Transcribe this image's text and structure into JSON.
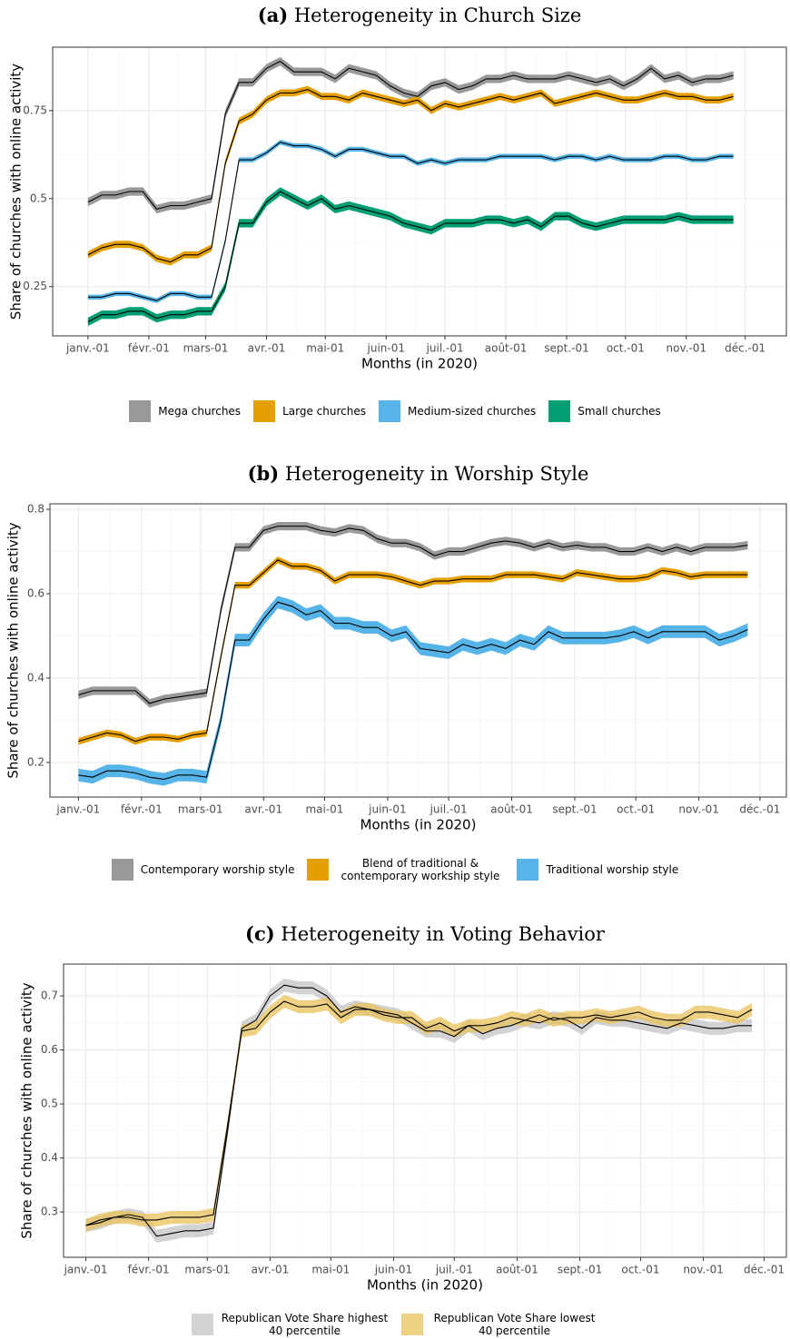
{
  "chart_data": [
    {
      "type": "line",
      "panel": "(a)",
      "title": "Heterogeneity in Church Size",
      "xlabel": "Months (in 2020)",
      "ylabel": "Share of churches with online activity",
      "line_color": "#000000",
      "band_opacity": 1,
      "grid": true,
      "x": [
        1,
        8,
        15,
        22,
        29,
        36,
        43,
        50,
        57,
        64,
        71,
        78,
        85,
        92,
        99,
        106,
        113,
        120,
        127,
        134,
        141,
        148,
        155,
        162,
        169,
        176,
        183,
        190,
        197,
        204,
        211,
        218,
        225,
        232,
        239,
        246,
        253,
        260,
        267,
        274,
        281,
        288,
        295,
        302,
        309,
        316,
        323,
        330
      ],
      "xlim": [
        -17,
        357
      ],
      "ylim": [
        0.11,
        0.93
      ],
      "xticks": [
        {
          "value": 1,
          "label": "janv.-01"
        },
        {
          "value": 32,
          "label": "févr.-01"
        },
        {
          "value": 61,
          "label": "mars-01"
        },
        {
          "value": 92,
          "label": "avr.-01"
        },
        {
          "value": 122,
          "label": "mai-01"
        },
        {
          "value": 153,
          "label": "juin-01"
        },
        {
          "value": 183,
          "label": "juil.-01"
        },
        {
          "value": 214,
          "label": "août-01"
        },
        {
          "value": 245,
          "label": "sept.-01"
        },
        {
          "value": 275,
          "label": "oct.-01"
        },
        {
          "value": 306,
          "label": "nov.-01"
        },
        {
          "value": 336,
          "label": "déc.-01"
        }
      ],
      "yticks": [
        0.25,
        0.5,
        0.75
      ],
      "series": [
        {
          "name": "Mega churches",
          "color": "#999999",
          "ci": 0.012,
          "values": [
            0.49,
            0.51,
            0.51,
            0.52,
            0.52,
            0.47,
            0.48,
            0.48,
            0.49,
            0.5,
            0.74,
            0.83,
            0.83,
            0.87,
            0.89,
            0.86,
            0.86,
            0.86,
            0.84,
            0.87,
            0.86,
            0.85,
            0.82,
            0.8,
            0.79,
            0.82,
            0.83,
            0.81,
            0.82,
            0.84,
            0.84,
            0.85,
            0.84,
            0.84,
            0.84,
            0.85,
            0.84,
            0.83,
            0.84,
            0.82,
            0.84,
            0.87,
            0.84,
            0.85,
            0.83,
            0.84,
            0.84,
            0.85
          ]
        },
        {
          "name": "Large churches",
          "color": "#E69F00",
          "ci": 0.01,
          "values": [
            0.34,
            0.36,
            0.37,
            0.37,
            0.36,
            0.33,
            0.32,
            0.34,
            0.34,
            0.36,
            0.6,
            0.72,
            0.74,
            0.78,
            0.8,
            0.8,
            0.81,
            0.79,
            0.79,
            0.78,
            0.8,
            0.79,
            0.78,
            0.77,
            0.78,
            0.75,
            0.77,
            0.76,
            0.77,
            0.78,
            0.79,
            0.78,
            0.79,
            0.8,
            0.77,
            0.78,
            0.79,
            0.8,
            0.79,
            0.78,
            0.78,
            0.79,
            0.8,
            0.79,
            0.79,
            0.78,
            0.78,
            0.79
          ]
        },
        {
          "name": "Medium-sized churches",
          "color": "#56B4E9",
          "ci": 0.007,
          "values": [
            0.22,
            0.22,
            0.23,
            0.23,
            0.22,
            0.21,
            0.23,
            0.23,
            0.22,
            0.22,
            0.38,
            0.61,
            0.61,
            0.63,
            0.66,
            0.65,
            0.65,
            0.64,
            0.62,
            0.64,
            0.64,
            0.63,
            0.62,
            0.62,
            0.6,
            0.61,
            0.6,
            0.61,
            0.61,
            0.61,
            0.62,
            0.62,
            0.62,
            0.62,
            0.61,
            0.62,
            0.62,
            0.61,
            0.62,
            0.61,
            0.61,
            0.61,
            0.62,
            0.62,
            0.61,
            0.61,
            0.62,
            0.62
          ]
        },
        {
          "name": "Small churches",
          "color": "#009E73",
          "ci": 0.012,
          "values": [
            0.15,
            0.17,
            0.17,
            0.18,
            0.18,
            0.16,
            0.17,
            0.17,
            0.18,
            0.18,
            0.25,
            0.43,
            0.43,
            0.49,
            0.52,
            0.5,
            0.48,
            0.5,
            0.47,
            0.48,
            0.47,
            0.46,
            0.45,
            0.43,
            0.42,
            0.41,
            0.43,
            0.43,
            0.43,
            0.44,
            0.44,
            0.43,
            0.44,
            0.42,
            0.45,
            0.45,
            0.43,
            0.42,
            0.43,
            0.44,
            0.44,
            0.44,
            0.44,
            0.45,
            0.44,
            0.44,
            0.44,
            0.44
          ]
        }
      ]
    },
    {
      "type": "line",
      "panel": "(b)",
      "title": "Heterogeneity in Worship Style",
      "xlabel": "Months (in 2020)",
      "ylabel": "Share of churches with online activity",
      "line_color": "#000000",
      "band_opacity": 1,
      "grid": true,
      "x": [
        1,
        8,
        15,
        22,
        29,
        36,
        43,
        50,
        57,
        64,
        71,
        78,
        85,
        92,
        99,
        106,
        113,
        120,
        127,
        134,
        141,
        148,
        155,
        162,
        169,
        176,
        183,
        190,
        197,
        204,
        211,
        218,
        225,
        232,
        239,
        246,
        253,
        260,
        267,
        274,
        281,
        288,
        295,
        302,
        309,
        316,
        323,
        330
      ],
      "xlim": [
        -13,
        349
      ],
      "ylim": [
        0.118,
        0.813
      ],
      "xticks": [
        {
          "value": 1,
          "label": "janv.-01"
        },
        {
          "value": 32,
          "label": "févr.-01"
        },
        {
          "value": 61,
          "label": "mars-01"
        },
        {
          "value": 92,
          "label": "avr.-01"
        },
        {
          "value": 122,
          "label": "mai-01"
        },
        {
          "value": 153,
          "label": "juin-01"
        },
        {
          "value": 183,
          "label": "juil.-01"
        },
        {
          "value": 214,
          "label": "août-01"
        },
        {
          "value": 245,
          "label": "sept.-01"
        },
        {
          "value": 275,
          "label": "oct.-01"
        },
        {
          "value": 306,
          "label": "nov.-01"
        },
        {
          "value": 336,
          "label": "déc.-01"
        }
      ],
      "yticks": [
        0.2,
        0.4,
        0.6,
        0.8
      ],
      "series": [
        {
          "name": "Contemporary worship style",
          "color": "#999999",
          "ci": 0.01,
          "values": [
            0.36,
            0.37,
            0.37,
            0.37,
            0.37,
            0.34,
            0.35,
            0.355,
            0.36,
            0.365,
            0.56,
            0.71,
            0.71,
            0.75,
            0.76,
            0.76,
            0.76,
            0.75,
            0.745,
            0.755,
            0.75,
            0.73,
            0.72,
            0.72,
            0.71,
            0.69,
            0.7,
            0.7,
            0.71,
            0.72,
            0.725,
            0.72,
            0.71,
            0.72,
            0.71,
            0.715,
            0.71,
            0.71,
            0.7,
            0.7,
            0.71,
            0.7,
            0.71,
            0.7,
            0.71,
            0.71,
            0.71,
            0.715
          ]
        },
        {
          "name": "Blend of traditional & contemporary workship style",
          "color": "#E69F00",
          "ci": 0.008,
          "values": [
            0.25,
            0.26,
            0.27,
            0.265,
            0.25,
            0.26,
            0.26,
            0.255,
            0.265,
            0.27,
            0.45,
            0.62,
            0.62,
            0.65,
            0.68,
            0.665,
            0.665,
            0.655,
            0.63,
            0.645,
            0.645,
            0.645,
            0.64,
            0.63,
            0.62,
            0.63,
            0.63,
            0.635,
            0.635,
            0.635,
            0.645,
            0.645,
            0.645,
            0.64,
            0.635,
            0.65,
            0.645,
            0.64,
            0.635,
            0.635,
            0.64,
            0.655,
            0.65,
            0.64,
            0.645,
            0.645,
            0.645,
            0.645
          ]
        },
        {
          "name": "Traditional worship style",
          "color": "#56B4E9",
          "ci": 0.015,
          "values": [
            0.17,
            0.165,
            0.18,
            0.18,
            0.175,
            0.165,
            0.16,
            0.17,
            0.17,
            0.165,
            0.3,
            0.49,
            0.49,
            0.54,
            0.58,
            0.57,
            0.55,
            0.56,
            0.53,
            0.53,
            0.52,
            0.52,
            0.5,
            0.51,
            0.47,
            0.465,
            0.46,
            0.48,
            0.47,
            0.48,
            0.47,
            0.49,
            0.48,
            0.51,
            0.495,
            0.495,
            0.495,
            0.495,
            0.5,
            0.51,
            0.495,
            0.51,
            0.51,
            0.51,
            0.51,
            0.49,
            0.5,
            0.515
          ]
        }
      ]
    },
    {
      "type": "line",
      "panel": "(c)",
      "title": "Heterogeneity in Voting Behavior",
      "xlabel": "Months (in 2020)",
      "ylabel": "Share of churches with online activity",
      "line_color": "#000000",
      "band_opacity": 0.75,
      "grid": true,
      "x": [
        1,
        8,
        15,
        22,
        29,
        36,
        43,
        50,
        57,
        64,
        71,
        78,
        85,
        92,
        99,
        106,
        113,
        120,
        127,
        134,
        141,
        148,
        155,
        162,
        169,
        176,
        183,
        190,
        197,
        204,
        211,
        218,
        225,
        232,
        239,
        246,
        253,
        260,
        267,
        274,
        281,
        288,
        295,
        302,
        309,
        316,
        323,
        330
      ],
      "xlim": [
        -10,
        347
      ],
      "ylim": [
        0.216,
        0.759
      ],
      "xticks": [
        {
          "value": 1,
          "label": "janv.-01"
        },
        {
          "value": 32,
          "label": "févr.-01"
        },
        {
          "value": 61,
          "label": "mars-01"
        },
        {
          "value": 92,
          "label": "avr.-01"
        },
        {
          "value": 122,
          "label": "mai-01"
        },
        {
          "value": 153,
          "label": "juin-01"
        },
        {
          "value": 183,
          "label": "juil.-01"
        },
        {
          "value": 214,
          "label": "août-01"
        },
        {
          "value": 245,
          "label": "sept.-01"
        },
        {
          "value": 275,
          "label": "oct.-01"
        },
        {
          "value": 306,
          "label": "nov.-01"
        },
        {
          "value": 336,
          "label": "déc.-01"
        }
      ],
      "yticks": [
        0.3,
        0.4,
        0.5,
        0.6,
        0.7
      ],
      "series": [
        {
          "name": "Republican Vote Share highest 40 percentile",
          "color": "#c4c4c8",
          "ci": 0.012,
          "values": [
            0.275,
            0.28,
            0.29,
            0.295,
            0.29,
            0.255,
            0.26,
            0.265,
            0.265,
            0.27,
            0.45,
            0.64,
            0.655,
            0.7,
            0.72,
            0.715,
            0.715,
            0.7,
            0.67,
            0.68,
            0.675,
            0.67,
            0.665,
            0.65,
            0.635,
            0.635,
            0.625,
            0.645,
            0.63,
            0.64,
            0.645,
            0.655,
            0.65,
            0.66,
            0.655,
            0.64,
            0.66,
            0.655,
            0.655,
            0.65,
            0.645,
            0.64,
            0.65,
            0.645,
            0.64,
            0.64,
            0.645,
            0.645
          ]
        },
        {
          "name": "Republican Vote Share lowest 40 percentile",
          "color": "#e8c15a",
          "ci": 0.012,
          "values": [
            0.275,
            0.285,
            0.29,
            0.29,
            0.285,
            0.285,
            0.29,
            0.29,
            0.29,
            0.295,
            0.46,
            0.635,
            0.64,
            0.67,
            0.69,
            0.68,
            0.68,
            0.685,
            0.66,
            0.675,
            0.675,
            0.665,
            0.66,
            0.66,
            0.64,
            0.65,
            0.635,
            0.645,
            0.645,
            0.65,
            0.66,
            0.655,
            0.665,
            0.655,
            0.66,
            0.66,
            0.665,
            0.66,
            0.665,
            0.67,
            0.66,
            0.655,
            0.655,
            0.67,
            0.67,
            0.665,
            0.66,
            0.675
          ]
        }
      ]
    }
  ]
}
